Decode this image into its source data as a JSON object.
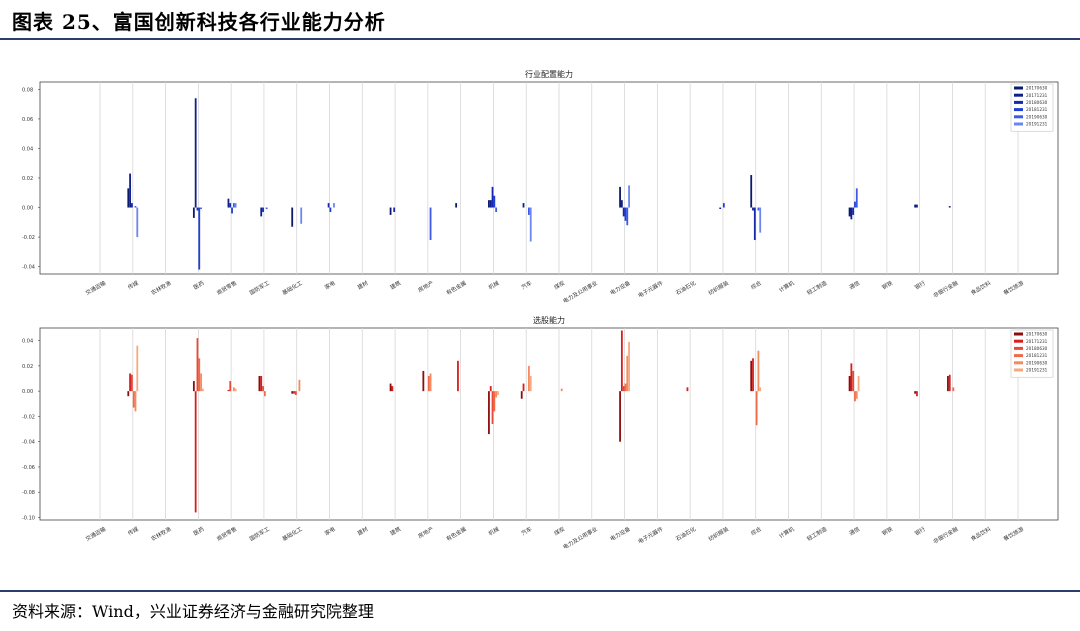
{
  "figure_title": "图表 25、富国创新科技各行业能力分析",
  "source_note": "资料来源：Wind，兴业证券经济与金融研究院整理",
  "chart_data": [
    {
      "type": "bar",
      "title": "行业配置能力",
      "xlabel": "",
      "ylabel": "",
      "ylim": [
        -0.045,
        0.085
      ],
      "yticks": [
        0.08,
        0.06,
        0.04,
        0.02,
        0.0,
        -0.02,
        -0.04
      ],
      "ytick_labels": [
        "0.08",
        "0.06",
        "0.04",
        "0.02",
        "0.00",
        "-0.02",
        "-0.04"
      ],
      "grid": "vertical",
      "legend_position": "top-right",
      "categories": [
        "交通运输",
        "传媒",
        "农林牧渔",
        "医药",
        "商贸零售",
        "国防军工",
        "基础化工",
        "家电",
        "建材",
        "建筑",
        "房地产",
        "有色金属",
        "机械",
        "汽车",
        "煤炭",
        "电力及公用事业",
        "电力设备",
        "电子元器件",
        "石油石化",
        "纺织服装",
        "综合",
        "计算机",
        "轻工制造",
        "通信",
        "钢铁",
        "银行",
        "非银行金融",
        "食品饮料",
        "餐饮旅游"
      ],
      "series": [
        {
          "name": "20170630",
          "color": "#0b1a6e",
          "values": [
            0,
            0.013,
            0,
            -0.007,
            0,
            0,
            -0.013,
            0,
            0,
            -0.005,
            0,
            0.003,
            0.005,
            0,
            0,
            0,
            0.014,
            0,
            0,
            0,
            0.022,
            0,
            0,
            -0.006,
            0,
            0.002,
            0,
            0,
            0
          ]
        },
        {
          "name": "20171231",
          "color": "#111f8a",
          "values": [
            0,
            0.023,
            0,
            0.074,
            0.006,
            -0.006,
            0,
            0,
            0,
            0,
            0,
            0,
            0.005,
            0.003,
            0,
            0,
            0.005,
            0,
            0,
            -0.001,
            -0.002,
            0,
            0,
            -0.008,
            0,
            0.002,
            0.001,
            0,
            0
          ]
        },
        {
          "name": "20180630",
          "color": "#1428b0",
          "values": [
            0,
            0.003,
            0,
            -0.002,
            0.003,
            -0.003,
            0,
            0.003,
            0,
            -0.003,
            0,
            0,
            0.014,
            0,
            0,
            0,
            -0.006,
            0,
            0,
            0,
            -0.022,
            0,
            0,
            -0.005,
            0,
            0,
            0,
            0,
            0
          ]
        },
        {
          "name": "20181231",
          "color": "#1f3fd6",
          "values": [
            0,
            0,
            0,
            -0.042,
            -0.004,
            0,
            0,
            -0.003,
            0,
            0,
            0,
            0,
            0.008,
            0,
            0,
            0,
            -0.009,
            0,
            0,
            0.003,
            0,
            0,
            0,
            0.004,
            0,
            0,
            0,
            0,
            0
          ]
        },
        {
          "name": "20190630",
          "color": "#3b5ae8",
          "values": [
            0,
            0.001,
            0,
            -0.001,
            0.003,
            -0.001,
            0,
            0,
            0,
            0,
            -0.022,
            0,
            -0.003,
            -0.005,
            0,
            0,
            -0.012,
            0,
            0,
            0,
            -0.002,
            0,
            0,
            0.013,
            0,
            0,
            0,
            0,
            0
          ]
        },
        {
          "name": "20191231",
          "color": "#6b86f0",
          "values": [
            0,
            -0.02,
            0,
            0,
            0.003,
            0,
            -0.011,
            0.003,
            0,
            0,
            0,
            0,
            0,
            -0.023,
            0,
            0,
            0.015,
            0,
            0,
            0,
            -0.017,
            0,
            0,
            0,
            0,
            0,
            0,
            0,
            0
          ]
        }
      ]
    },
    {
      "type": "bar",
      "title": "选股能力",
      "xlabel": "",
      "ylabel": "",
      "ylim": [
        -0.102,
        0.05
      ],
      "yticks": [
        0.04,
        0.02,
        0.0,
        -0.02,
        -0.04,
        -0.06,
        -0.08,
        -0.1
      ],
      "ytick_labels": [
        "0.04",
        "0.02",
        "0.00",
        "-0.02",
        "-0.04",
        "-0.06",
        "-0.08",
        "-0.10"
      ],
      "grid": "vertical",
      "legend_position": "top-right",
      "categories": [
        "交通运输",
        "传媒",
        "农林牧渔",
        "医药",
        "商贸零售",
        "国防军工",
        "基础化工",
        "家电",
        "建材",
        "建筑",
        "房地产",
        "有色金属",
        "机械",
        "汽车",
        "煤炭",
        "电力及公用事业",
        "电力设备",
        "电子元器件",
        "石油石化",
        "纺织服装",
        "综合",
        "计算机",
        "轻工制造",
        "通信",
        "钢铁",
        "银行",
        "非银行金融",
        "食品饮料",
        "餐饮旅游"
      ],
      "series": [
        {
          "name": "20170630",
          "color": "#8c0d0d",
          "values": [
            0,
            -0.004,
            0,
            0.008,
            0,
            0.012,
            -0.002,
            0,
            0,
            0.006,
            0.016,
            0,
            -0.034,
            -0.006,
            0,
            0,
            -0.04,
            0,
            0,
            0,
            0.024,
            0,
            0,
            0.012,
            0,
            -0.002,
            0.012,
            0,
            0
          ]
        },
        {
          "name": "20171231",
          "color": "#d81e1e",
          "values": [
            0,
            0.014,
            0,
            -0.096,
            0.001,
            0.012,
            -0.002,
            0,
            0,
            0.004,
            0,
            0.024,
            0.004,
            0.006,
            0,
            0,
            0.048,
            0,
            0.003,
            0,
            0.026,
            0,
            0,
            0.022,
            0,
            -0.004,
            0.013,
            0,
            0
          ]
        },
        {
          "name": "20180630",
          "color": "#e84a3a",
          "values": [
            0,
            0.013,
            0,
            0.042,
            0.008,
            0.004,
            -0.003,
            0,
            0,
            0,
            0,
            0,
            -0.026,
            0,
            0,
            0,
            0.004,
            0,
            0,
            0,
            0,
            0,
            0,
            0.016,
            0,
            0,
            0,
            0,
            0
          ]
        },
        {
          "name": "20181231",
          "color": "#f06a48",
          "values": [
            0,
            -0.013,
            0,
            0.026,
            0,
            -0.004,
            0,
            0,
            0,
            0,
            0.012,
            0,
            -0.016,
            0,
            0,
            0,
            0.006,
            0,
            0,
            0,
            -0.027,
            0,
            0,
            -0.008,
            0,
            0,
            0.003,
            0,
            0
          ]
        },
        {
          "name": "20190630",
          "color": "#f58a60",
          "values": [
            0,
            -0.016,
            0,
            0.014,
            0.003,
            0,
            0.009,
            0,
            0,
            0,
            0.014,
            0,
            -0.005,
            0.02,
            0.002,
            0,
            0.028,
            0,
            0,
            0,
            0.032,
            0,
            0,
            -0.006,
            0,
            0,
            0,
            0,
            0
          ]
        },
        {
          "name": "20191231",
          "color": "#f8a87e",
          "values": [
            0,
            0.036,
            0,
            0.002,
            0.002,
            0,
            0,
            0,
            0,
            0,
            0,
            0,
            -0.003,
            0.012,
            0,
            0,
            0.039,
            0,
            0,
            0,
            0.003,
            0,
            0,
            0.012,
            0,
            0,
            0,
            0,
            0
          ]
        }
      ]
    }
  ]
}
